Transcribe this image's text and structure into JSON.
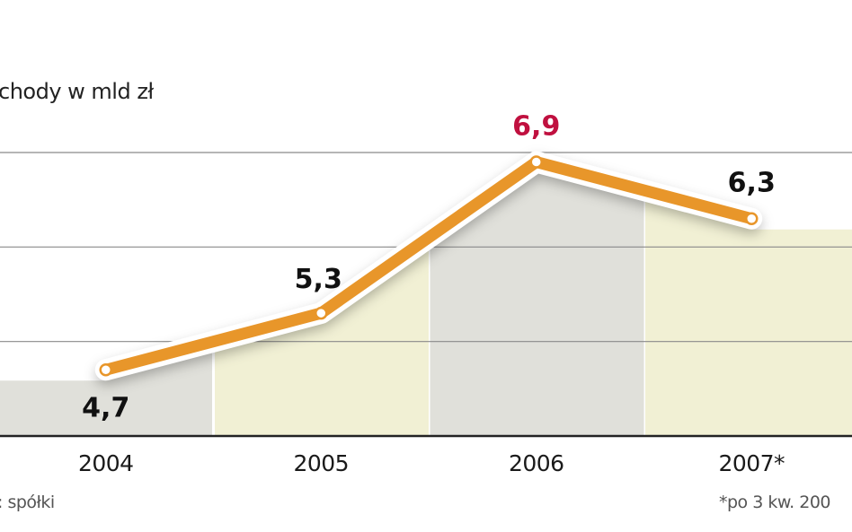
{
  "chart_data": {
    "type": "line",
    "title": "chody w mld zł",
    "categories": [
      "2004",
      "2005",
      "2006",
      "2007*"
    ],
    "values": [
      4.7,
      5.3,
      6.9,
      6.3
    ],
    "data_labels": [
      "4,7",
      "5,3",
      "6,9",
      "6,3"
    ],
    "highlight_index": 2,
    "ylim": [
      4,
      7
    ],
    "gridlines": [
      5,
      6,
      7
    ],
    "grid": true,
    "xlabel": "",
    "ylabel": "",
    "source": ": spółki",
    "footnote": "*po 3 kw. 200",
    "colors": {
      "line": "#E8962A",
      "highlight_label": "#C0103F",
      "label": "#111111",
      "band_gray": "#E0E0DA",
      "band_yellow": "#F1F0D4",
      "grid": "#8A8A8A"
    }
  }
}
